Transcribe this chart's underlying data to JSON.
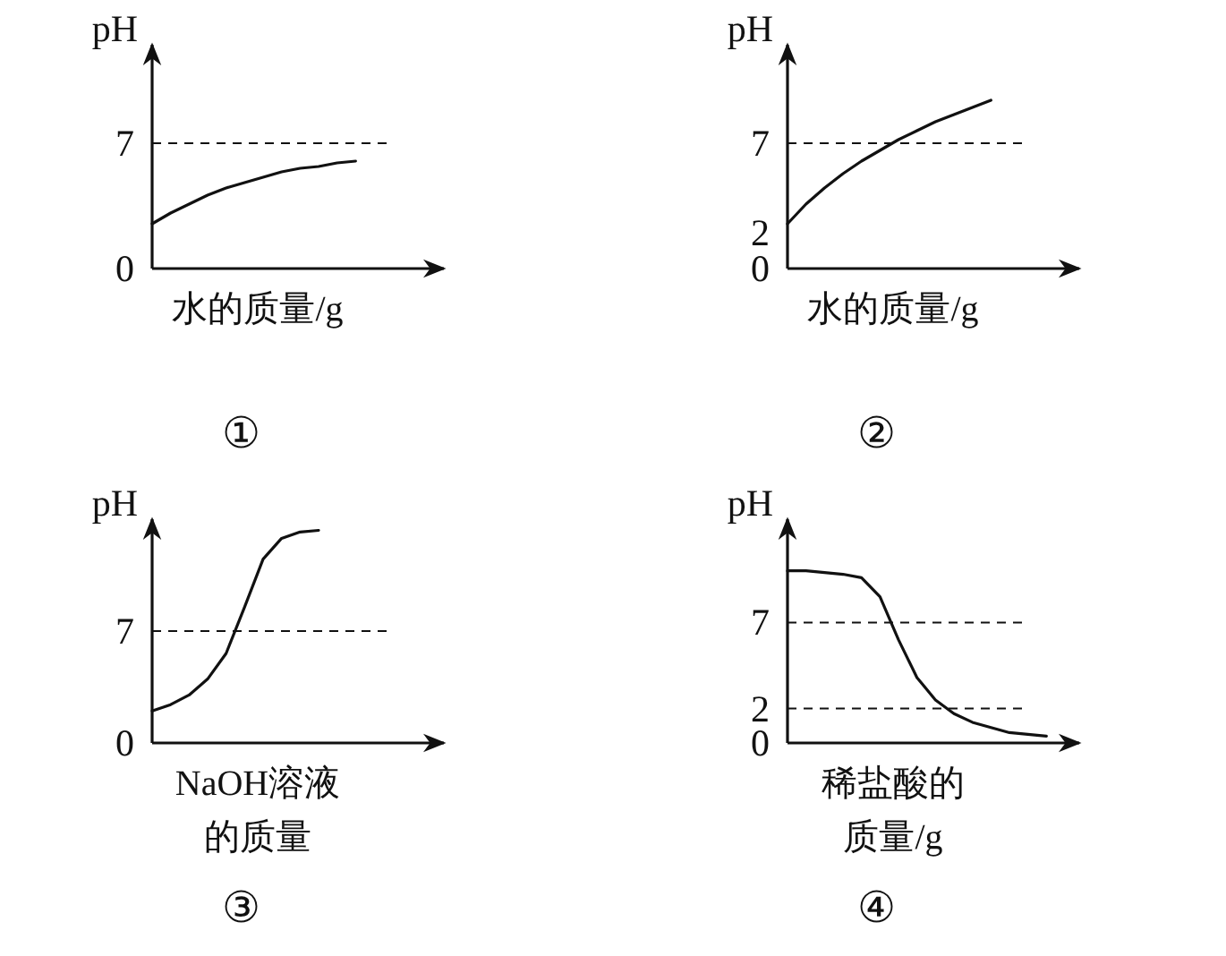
{
  "chart_data": [
    {
      "type": "line",
      "title": "①",
      "xlabel": "水的质量/g",
      "ylabel": "pH",
      "categories": [
        null,
        null,
        null,
        null,
        null,
        null,
        null,
        null,
        null,
        null,
        null,
        null,
        null,
        null,
        null,
        null
      ],
      "series": [
        {
          "color": "#111111",
          "values": [
            2.5,
            3.1,
            3.6,
            4.1,
            4.5,
            4.8,
            5.1,
            5.4,
            5.6,
            5.7,
            5.9,
            6.0,
            null,
            null,
            null,
            null
          ]
        }
      ],
      "ylim": [
        0,
        12.5
      ],
      "yticks": [
        0,
        7
      ],
      "tick_labels": "y",
      "ref_lines": [
        {
          "axis": "y",
          "value": 7,
          "line_style": "dashed"
        }
      ]
    },
    {
      "type": "line",
      "title": "②",
      "xlabel": "水的质量/g",
      "ylabel": "pH",
      "categories": [
        null,
        null,
        null,
        null,
        null,
        null,
        null,
        null,
        null,
        null,
        null,
        null,
        null,
        null,
        null,
        null
      ],
      "series": [
        {
          "color": "#111111",
          "values": [
            2.5,
            3.6,
            4.5,
            5.3,
            6.0,
            6.6,
            7.2,
            7.7,
            8.2,
            8.6,
            9.0,
            9.4,
            null,
            null,
            null,
            null
          ]
        }
      ],
      "ylim": [
        0,
        12.5
      ],
      "yticks": [
        0,
        2,
        7
      ],
      "tick_labels": "y",
      "ref_lines": [
        {
          "axis": "y",
          "value": 7,
          "line_style": "dashed"
        }
      ]
    },
    {
      "type": "line",
      "title": "③",
      "xlabel": "NaOH溶液的质量",
      "ylabel": "pH",
      "categories": [
        null,
        null,
        null,
        null,
        null,
        null,
        null,
        null,
        null,
        null,
        null,
        null,
        null,
        null,
        null,
        null
      ],
      "series": [
        {
          "color": "#111111",
          "values": [
            2.0,
            2.4,
            3.0,
            4.0,
            5.6,
            8.5,
            11.5,
            12.8,
            13.2,
            13.3,
            null,
            null,
            null,
            null,
            null,
            null
          ]
        }
      ],
      "ylim": [
        0,
        14
      ],
      "yticks": [
        0,
        7
      ],
      "tick_labels": "y",
      "ref_lines": [
        {
          "axis": "y",
          "value": 7,
          "line_style": "dashed"
        }
      ]
    },
    {
      "type": "line",
      "title": "④",
      "xlabel": "稀盐酸的质量/g",
      "ylabel": "pH",
      "categories": [
        null,
        null,
        null,
        null,
        null,
        null,
        null,
        null,
        null,
        null,
        null,
        null,
        null,
        null,
        null,
        null
      ],
      "series": [
        {
          "color": "#111111",
          "values": [
            10,
            10,
            9.9,
            9.8,
            9.6,
            8.5,
            6.0,
            3.8,
            2.5,
            1.7,
            1.2,
            0.9,
            0.6,
            0.5,
            0.4,
            null
          ]
        }
      ],
      "ylim": [
        0,
        13
      ],
      "yticks": [
        0,
        2,
        7
      ],
      "tick_labels": "y",
      "ref_lines": [
        {
          "axis": "y",
          "value": 7,
          "line_style": "dashed"
        },
        {
          "axis": "y",
          "value": 2,
          "line_style": "dashed"
        }
      ]
    }
  ]
}
